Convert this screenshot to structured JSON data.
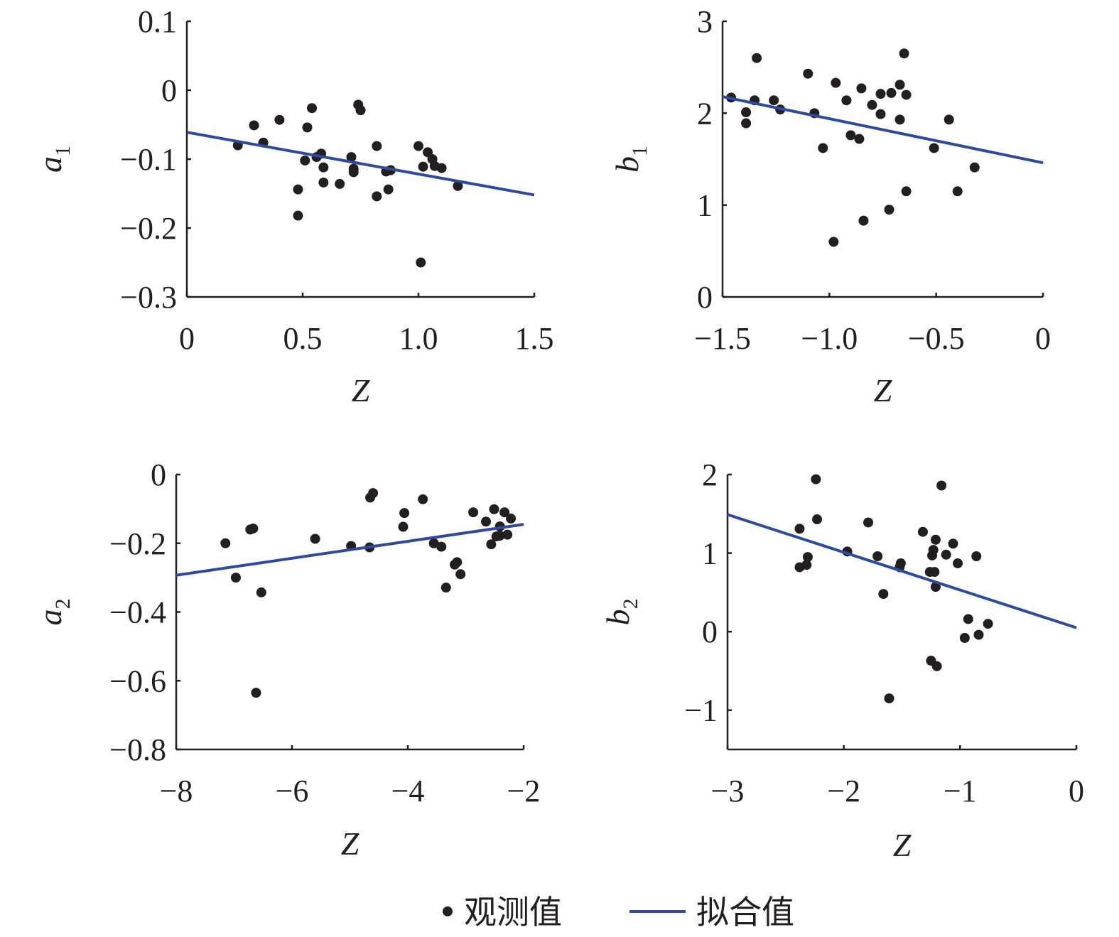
{
  "chart_data": [
    {
      "id": "a1",
      "type": "scatter",
      "xlabel": "Z",
      "ylabel": {
        "main": "a",
        "sub": "1"
      },
      "xlim": [
        0,
        1.5
      ],
      "ylim": [
        -0.3,
        0.1
      ],
      "xticks": [
        0,
        0.5,
        1.0,
        1.5
      ],
      "xtick_labels": [
        "0",
        "0.5",
        "1.0",
        "1.5"
      ],
      "yticks": [
        0.1,
        0,
        -0.1,
        -0.2,
        -0.3
      ],
      "ytick_labels": [
        "0.1",
        "0",
        "−0.1",
        "−0.2",
        "−0.3"
      ],
      "points": [
        [
          0.22,
          -0.08
        ],
        [
          0.29,
          -0.051
        ],
        [
          0.33,
          -0.076
        ],
        [
          0.4,
          -0.043
        ],
        [
          0.48,
          -0.144
        ],
        [
          0.48,
          -0.182
        ],
        [
          0.51,
          -0.102
        ],
        [
          0.52,
          -0.054
        ],
        [
          0.54,
          -0.026
        ],
        [
          0.56,
          -0.097
        ],
        [
          0.58,
          -0.092
        ],
        [
          0.59,
          -0.112
        ],
        [
          0.59,
          -0.134
        ],
        [
          0.66,
          -0.136
        ],
        [
          0.71,
          -0.097
        ],
        [
          0.72,
          -0.119
        ],
        [
          0.72,
          -0.114
        ],
        [
          0.74,
          -0.021
        ],
        [
          0.75,
          -0.029
        ],
        [
          0.82,
          -0.081
        ],
        [
          0.82,
          -0.154
        ],
        [
          0.86,
          -0.118
        ],
        [
          0.87,
          -0.144
        ],
        [
          0.88,
          -0.116
        ],
        [
          1.0,
          -0.081
        ],
        [
          1.01,
          -0.25
        ],
        [
          1.02,
          -0.111
        ],
        [
          1.04,
          -0.09
        ],
        [
          1.06,
          -0.1
        ],
        [
          1.07,
          -0.11
        ],
        [
          1.1,
          -0.113
        ],
        [
          1.17,
          -0.139
        ]
      ],
      "fit": [
        [
          0,
          -0.061
        ],
        [
          1.5,
          -0.152
        ]
      ]
    },
    {
      "id": "b1",
      "type": "scatter",
      "xlabel": "Z",
      "ylabel": {
        "main": "b",
        "sub": "1"
      },
      "xlim": [
        -1.5,
        0
      ],
      "ylim": [
        0,
        3
      ],
      "xticks": [
        -1.5,
        -1.0,
        -0.5,
        0
      ],
      "xtick_labels": [
        "−1.5",
        "−1.0",
        "−0.5",
        "0"
      ],
      "yticks": [
        3,
        2,
        1,
        0
      ],
      "ytick_labels": [
        "3",
        "2",
        "1",
        "0"
      ],
      "points": [
        [
          -1.46,
          2.17
        ],
        [
          -1.39,
          2.01
        ],
        [
          -1.39,
          1.89
        ],
        [
          -1.35,
          2.14
        ],
        [
          -1.34,
          2.6
        ],
        [
          -1.26,
          2.14
        ],
        [
          -1.23,
          2.04
        ],
        [
          -1.1,
          2.43
        ],
        [
          -1.07,
          2.0
        ],
        [
          -1.03,
          1.62
        ],
        [
          -0.98,
          0.6
        ],
        [
          -0.97,
          2.33
        ],
        [
          -0.92,
          2.14
        ],
        [
          -0.9,
          1.76
        ],
        [
          -0.86,
          1.72
        ],
        [
          -0.85,
          2.27
        ],
        [
          -0.84,
          0.83
        ],
        [
          -0.8,
          2.09
        ],
        [
          -0.76,
          1.99
        ],
        [
          -0.76,
          2.21
        ],
        [
          -0.72,
          0.95
        ],
        [
          -0.71,
          2.22
        ],
        [
          -0.67,
          2.31
        ],
        [
          -0.67,
          1.93
        ],
        [
          -0.65,
          2.65
        ],
        [
          -0.64,
          2.2
        ],
        [
          -0.64,
          1.15
        ],
        [
          -0.51,
          1.62
        ],
        [
          -0.44,
          1.93
        ],
        [
          -0.4,
          1.15
        ],
        [
          -0.32,
          1.41
        ]
      ],
      "fit": [
        [
          -1.5,
          2.18
        ],
        [
          0,
          1.46
        ]
      ]
    },
    {
      "id": "a2",
      "type": "scatter",
      "xlabel": "Z",
      "ylabel": {
        "main": "a",
        "sub": "2"
      },
      "xlim": [
        -8,
        -2
      ],
      "ylim": [
        -0.8,
        0
      ],
      "xticks": [
        -8,
        -6,
        -4,
        -2
      ],
      "xtick_labels": [
        "−8",
        "−6",
        "−4",
        "−2"
      ],
      "yticks": [
        0,
        -0.2,
        -0.4,
        -0.6,
        -0.8
      ],
      "ytick_labels": [
        "0",
        "−0.2",
        "−0.4",
        "−0.6",
        "−0.8"
      ],
      "points": [
        [
          -7.15,
          -0.2
        ],
        [
          -6.97,
          -0.3
        ],
        [
          -6.72,
          -0.16
        ],
        [
          -6.67,
          -0.157
        ],
        [
          -6.62,
          -0.635
        ],
        [
          -6.53,
          -0.343
        ],
        [
          -5.6,
          -0.187
        ],
        [
          -4.98,
          -0.208
        ],
        [
          -4.66,
          -0.212
        ],
        [
          -4.65,
          -0.067
        ],
        [
          -4.6,
          -0.054
        ],
        [
          -4.08,
          -0.152
        ],
        [
          -4.06,
          -0.112
        ],
        [
          -3.74,
          -0.072
        ],
        [
          -3.55,
          -0.2
        ],
        [
          -3.42,
          -0.21
        ],
        [
          -3.34,
          -0.329
        ],
        [
          -3.19,
          -0.262
        ],
        [
          -3.15,
          -0.255
        ],
        [
          -3.09,
          -0.29
        ],
        [
          -2.87,
          -0.11
        ],
        [
          -2.65,
          -0.137
        ],
        [
          -2.56,
          -0.203
        ],
        [
          -2.51,
          -0.101
        ],
        [
          -2.47,
          -0.18
        ],
        [
          -2.41,
          -0.151
        ],
        [
          -2.41,
          -0.178
        ],
        [
          -2.33,
          -0.11
        ],
        [
          -2.28,
          -0.175
        ],
        [
          -2.22,
          -0.128
        ]
      ],
      "fit": [
        [
          -8,
          -0.293
        ],
        [
          -2,
          -0.145
        ]
      ]
    },
    {
      "id": "b2",
      "type": "scatter",
      "xlabel": "Z",
      "ylabel": {
        "main": "b",
        "sub": "2"
      },
      "xlim": [
        -3,
        0
      ],
      "ylim": [
        -1.5,
        2
      ],
      "xticks": [
        -3,
        -2,
        -1,
        0
      ],
      "xtick_labels": [
        "−3",
        "−2",
        "−1",
        "0"
      ],
      "yticks": [
        2,
        1,
        0,
        -1
      ],
      "ytick_labels": [
        "2",
        "1",
        "0",
        "−1"
      ],
      "points": [
        [
          -2.38,
          1.31
        ],
        [
          -2.38,
          0.82
        ],
        [
          -2.32,
          0.85
        ],
        [
          -2.31,
          0.95
        ],
        [
          -2.24,
          1.94
        ],
        [
          -2.23,
          1.43
        ],
        [
          -1.97,
          1.02
        ],
        [
          -1.79,
          1.39
        ],
        [
          -1.71,
          0.96
        ],
        [
          -1.66,
          0.48
        ],
        [
          -1.61,
          -0.85
        ],
        [
          -1.52,
          0.82
        ],
        [
          -1.51,
          0.87
        ],
        [
          -1.32,
          1.27
        ],
        [
          -1.26,
          0.76
        ],
        [
          -1.25,
          -0.37
        ],
        [
          -1.24,
          0.97
        ],
        [
          -1.23,
          1.04
        ],
        [
          -1.22,
          0.76
        ],
        [
          -1.21,
          1.17
        ],
        [
          -1.21,
          0.57
        ],
        [
          -1.2,
          -0.44
        ],
        [
          -1.16,
          1.86
        ],
        [
          -1.12,
          0.98
        ],
        [
          -1.06,
          1.12
        ],
        [
          -1.02,
          0.87
        ],
        [
          -0.96,
          -0.08
        ],
        [
          -0.93,
          0.16
        ],
        [
          -0.86,
          0.96
        ],
        [
          -0.84,
          -0.04
        ],
        [
          -0.76,
          0.1
        ]
      ],
      "fit": [
        [
          -3,
          1.49
        ],
        [
          0,
          0.05
        ]
      ]
    }
  ],
  "legend": {
    "observed": "观测值",
    "fitted": "拟合值"
  },
  "colors": {
    "points": "#231f20",
    "fit_line": "#2e4a9e",
    "axis": "#231f20"
  }
}
